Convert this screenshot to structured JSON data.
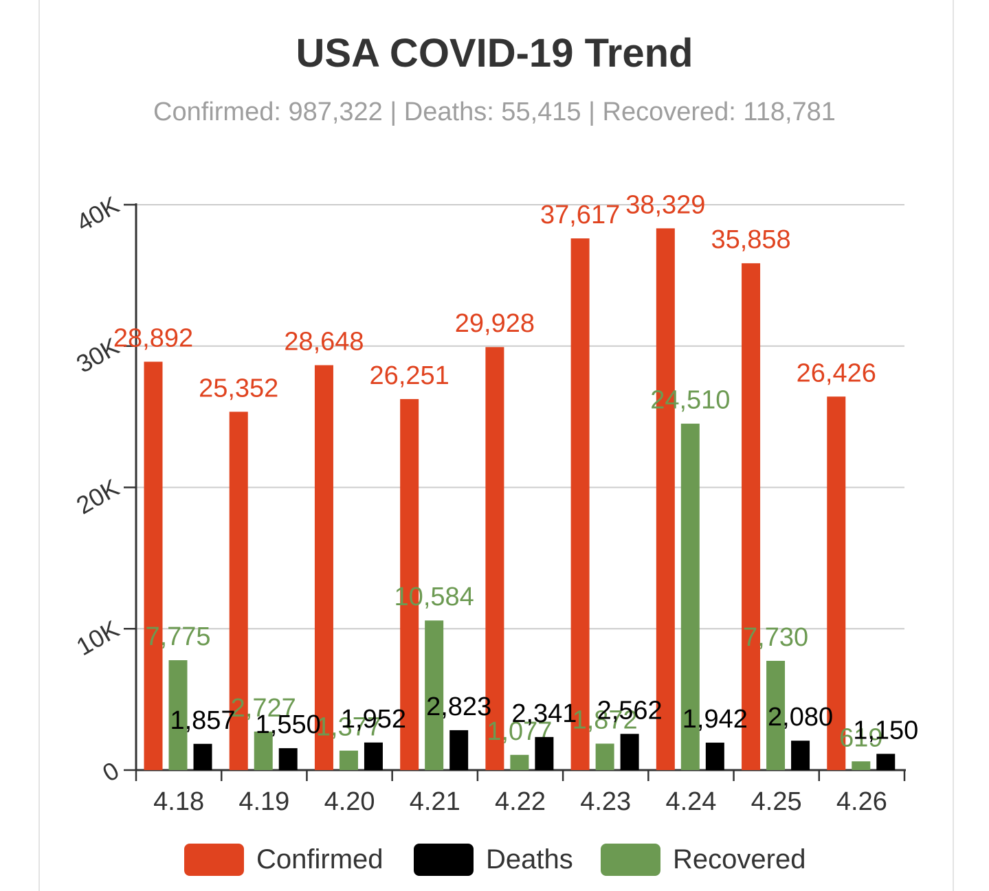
{
  "title": "USA COVID-19 Trend",
  "subtitle": "Confirmed: 987,322 | Deaths: 55,415 | Recovered: 118,781",
  "colors": {
    "confirmed": "#e0431f",
    "deaths": "#000000",
    "recovered": "#6c9a52",
    "grid": "#cccccc",
    "axis": "#333333"
  },
  "chart_data": {
    "type": "bar",
    "title": "USA COVID-19 Trend",
    "subtitle": "Confirmed: 987,322 | Deaths: 55,415 | Recovered: 118,781",
    "categories": [
      "4.18",
      "4.19",
      "4.20",
      "4.21",
      "4.22",
      "4.23",
      "4.24",
      "4.25",
      "4.26"
    ],
    "series": [
      {
        "name": "Confirmed",
        "color": "#e0431f",
        "values": [
          28892,
          25352,
          28648,
          26251,
          29928,
          37617,
          38329,
          35858,
          26426
        ],
        "labels": [
          "28,892",
          "25,352",
          "28,648",
          "26,251",
          "29,928",
          "37,617",
          "38,329",
          "35,858",
          "26,426"
        ]
      },
      {
        "name": "Recovered",
        "color": "#6c9a52",
        "values": [
          7775,
          2727,
          1377,
          10584,
          1077,
          1872,
          24510,
          7730,
          619
        ],
        "labels": [
          "7,775",
          "2,727",
          "1,377",
          "10,584",
          "1,077",
          "1,872",
          "24,510",
          "7,730",
          "619"
        ]
      },
      {
        "name": "Deaths",
        "color": "#000000",
        "values": [
          1857,
          1550,
          1952,
          2823,
          2341,
          2562,
          1942,
          2080,
          1150
        ],
        "labels": [
          "1,857",
          "1,550",
          "1,952",
          "2,823",
          "2,341",
          "2,562",
          "1,942",
          "2,080",
          "1,150"
        ]
      }
    ],
    "legend": [
      "Confirmed",
      "Deaths",
      "Recovered"
    ],
    "y_ticks": [
      "0",
      "10K",
      "20K",
      "30K",
      "40K"
    ],
    "ylim": [
      0,
      40000
    ],
    "grid": true,
    "legend_position": "bottom"
  }
}
